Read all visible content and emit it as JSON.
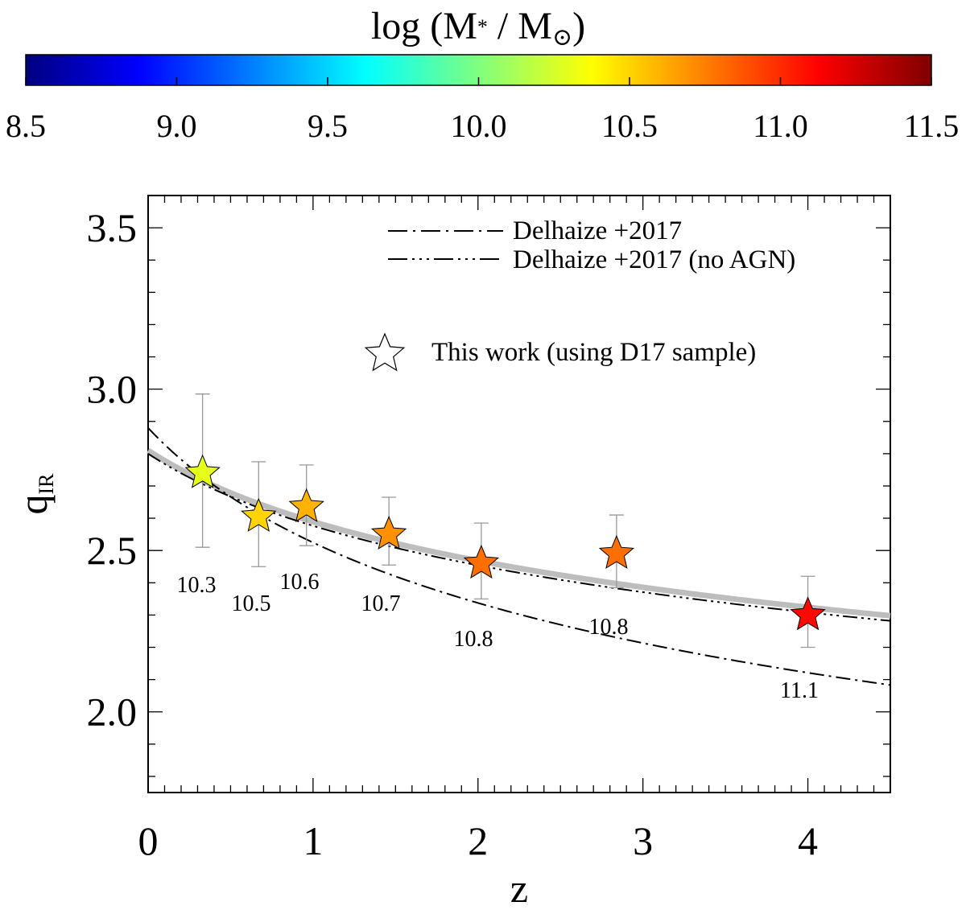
{
  "colorbar": {
    "title": "log (M",
    "title_sub": "*",
    "title_mid": " / M",
    "title_sun": "⊙",
    "title_end": ")",
    "min": 8.5,
    "max": 11.5,
    "ticks": [
      "8.5",
      "9.0",
      "9.5",
      "10.0",
      "10.5",
      "11.0",
      "11.5"
    ],
    "colors": [
      "#00007f",
      "#0000ff",
      "#007fff",
      "#00ffff",
      "#7fff7f",
      "#ffff00",
      "#ff7f00",
      "#ff0000",
      "#7f0000"
    ]
  },
  "chart_data": {
    "type": "scatter",
    "xlabel": "z",
    "ylabel": "q",
    "ylabel_sub": "IR",
    "xlim": [
      0,
      4.5
    ],
    "ylim": [
      1.75,
      3.6
    ],
    "xticks": [
      "0",
      "1",
      "2",
      "3",
      "4"
    ],
    "yticks": [
      "2.0",
      "2.5",
      "3.0",
      "3.5"
    ],
    "points": [
      {
        "z": 0.33,
        "q": 2.745,
        "err_lo": 0.235,
        "err_hi": 0.24,
        "logM": 10.3,
        "label": "10.3"
      },
      {
        "z": 0.67,
        "q": 2.61,
        "err_lo": 0.16,
        "err_hi": 0.165,
        "logM": 10.5,
        "label": "10.5"
      },
      {
        "z": 0.96,
        "q": 2.64,
        "err_lo": 0.125,
        "err_hi": 0.125,
        "logM": 10.6,
        "label": "10.6"
      },
      {
        "z": 1.46,
        "q": 2.555,
        "err_lo": 0.1,
        "err_hi": 0.11,
        "logM": 10.7,
        "label": "10.7"
      },
      {
        "z": 2.02,
        "q": 2.465,
        "err_lo": 0.115,
        "err_hi": 0.12,
        "logM": 10.8,
        "label": "10.8"
      },
      {
        "z": 2.84,
        "q": 2.495,
        "err_lo": 0.11,
        "err_hi": 0.115,
        "logM": 10.8,
        "label": "10.8"
      },
      {
        "z": 4.0,
        "q": 2.305,
        "err_lo": 0.105,
        "err_hi": 0.115,
        "logM": 11.1,
        "label": "11.1"
      }
    ],
    "fit_curve": {
      "model": "q = a*(1+z)^b",
      "a": 2.81,
      "b": -0.118
    },
    "series": [
      {
        "name": "Delhaize +2017",
        "model": "q = a*(1+z)^b",
        "a": 2.88,
        "b": -0.19,
        "dash": "dash-dot"
      },
      {
        "name": "Delhaize +2017 (no AGN)",
        "model": "q = a*(1+z)^b",
        "a": 2.8,
        "b": -0.12,
        "dash": "dash-dot-dot-dot"
      }
    ],
    "legend_points_label": "This work (using D17 sample)"
  }
}
